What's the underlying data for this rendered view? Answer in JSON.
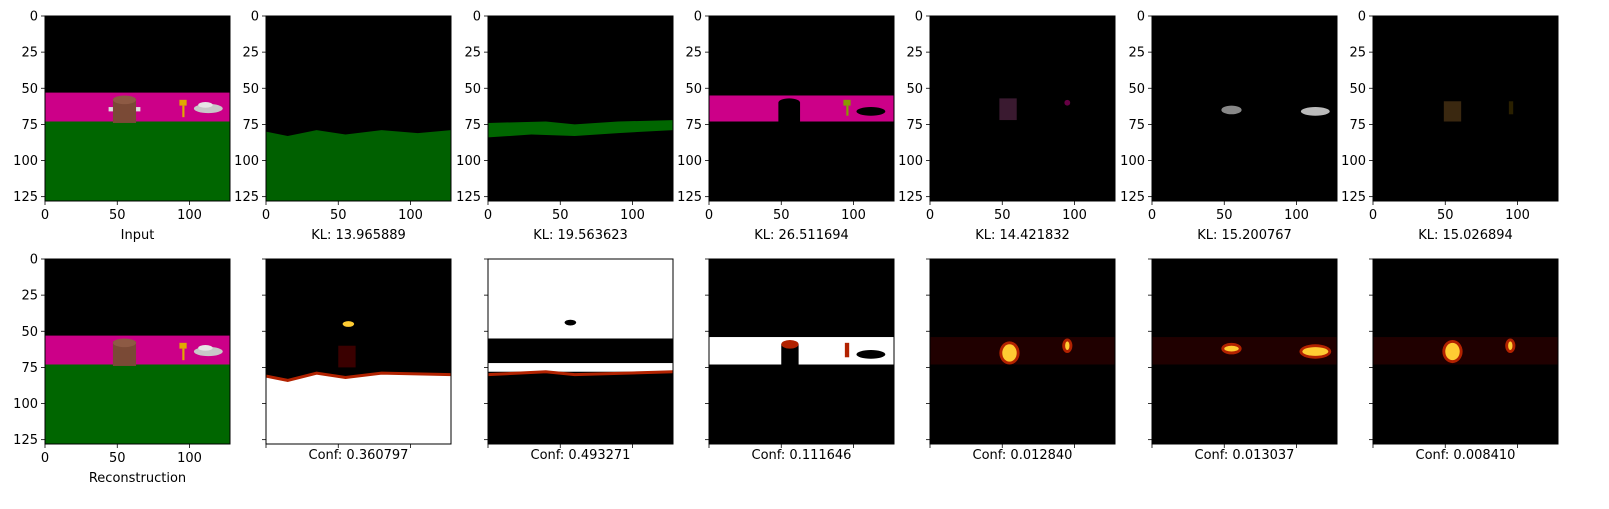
{
  "chart_data": {
    "type": "image_grid",
    "layout": {
      "rows": 2,
      "cols": 7
    },
    "xlim": [
      0,
      128
    ],
    "ylim": [
      128,
      0
    ],
    "xticks": [
      0,
      50,
      100
    ],
    "yticks": [
      0,
      25,
      50,
      75,
      100,
      125
    ],
    "top_captions": [
      "Input",
      "KL: 13.965889",
      "KL: 19.563623",
      "KL: 26.511694",
      "KL: 14.421832",
      "KL: 15.200767",
      "KL: 15.026894"
    ],
    "bottom_captions": [
      "Reconstruction",
      "Conf: 0.360797",
      "Conf: 0.493271",
      "Conf: 0.111646",
      "Conf: 0.012840",
      "Conf: 0.013037",
      "Conf: 0.008410"
    ],
    "colors": {
      "sky": "#000000",
      "wall": "#cc0088",
      "ground": "#006600",
      "heat_low": "#000000",
      "heat_mid": "#b22200",
      "heat_high": "#ffcc33",
      "heat_max": "#ffffff"
    }
  }
}
